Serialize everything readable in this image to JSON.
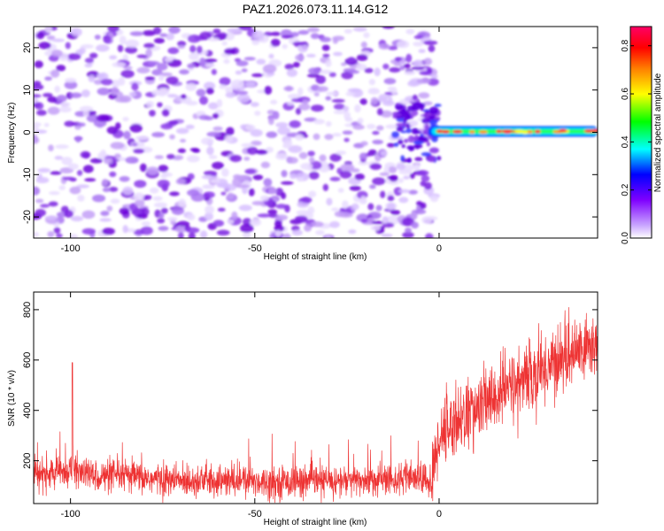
{
  "title": "PAZ1.2026.073.11.14.G12",
  "chart_data": [
    {
      "type": "heatmap",
      "title": "PAZ1.2026.073.11.14.G12",
      "xlabel": "Height of straight line (km)",
      "ylabel": "Frequency (Hz)",
      "xlim": [
        -110,
        43
      ],
      "ylim": [
        -25,
        25
      ],
      "xticks": [
        -100,
        -50,
        0
      ],
      "yticks": [
        -20,
        -10,
        0,
        10,
        20
      ],
      "xtick_labels": [
        "-100",
        "-50",
        "0"
      ],
      "ytick_labels": [
        "-20",
        "-10",
        "0",
        "10",
        "20"
      ],
      "colorbar": {
        "label": "Normalized spectral amplitude",
        "range": [
          0.0,
          0.88
        ],
        "ticks": [
          0.0,
          0.2,
          0.4,
          0.6,
          0.8
        ],
        "tick_labels": [
          "0.0",
          "0.2",
          "0.4",
          "0.6",
          "0.8"
        ],
        "colors": [
          "#ffffff",
          "#c9a6ff",
          "#7f00ff",
          "#0000ff",
          "#00ffff",
          "#00ff00",
          "#ffff00",
          "#ff8000",
          "#ff0000",
          "#ff0066"
        ]
      },
      "description_values": {
        "noise_region_x": [
          -110,
          -3
        ],
        "signal_band": {
          "x_start": -3,
          "x_end": 43,
          "frequency_center": 0.2,
          "peak_amplitude": 0.85
        }
      }
    },
    {
      "type": "line",
      "xlabel": "Height of straight line (km)",
      "ylabel": "SNR (10 * v/v)",
      "xlim": [
        -110,
        43
      ],
      "ylim": [
        30,
        870
      ],
      "xticks": [
        -100,
        -50,
        0
      ],
      "yticks": [
        200,
        400,
        600,
        800
      ],
      "xtick_labels": [
        "-100",
        "-50",
        "0"
      ],
      "ytick_labels": [
        "200",
        "400",
        "600",
        "800"
      ],
      "series": [
        {
          "name": "SNR",
          "color": "#ee3333",
          "x": [
            -110,
            -105,
            -100,
            -95,
            -90,
            -85,
            -80,
            -75,
            -70,
            -65,
            -60,
            -55,
            -50,
            -45,
            -40,
            -35,
            -30,
            -25,
            -20,
            -15,
            -10,
            -5,
            -2,
            0,
            2,
            5,
            10,
            15,
            20,
            25,
            30,
            35,
            40,
            43
          ],
          "y": [
            140,
            150,
            165,
            145,
            135,
            140,
            130,
            125,
            120,
            125,
            118,
            120,
            120,
            115,
            118,
            120,
            118,
            120,
            122,
            125,
            128,
            130,
            110,
            300,
            330,
            360,
            400,
            450,
            500,
            530,
            580,
            620,
            650,
            660
          ]
        }
      ]
    }
  ]
}
